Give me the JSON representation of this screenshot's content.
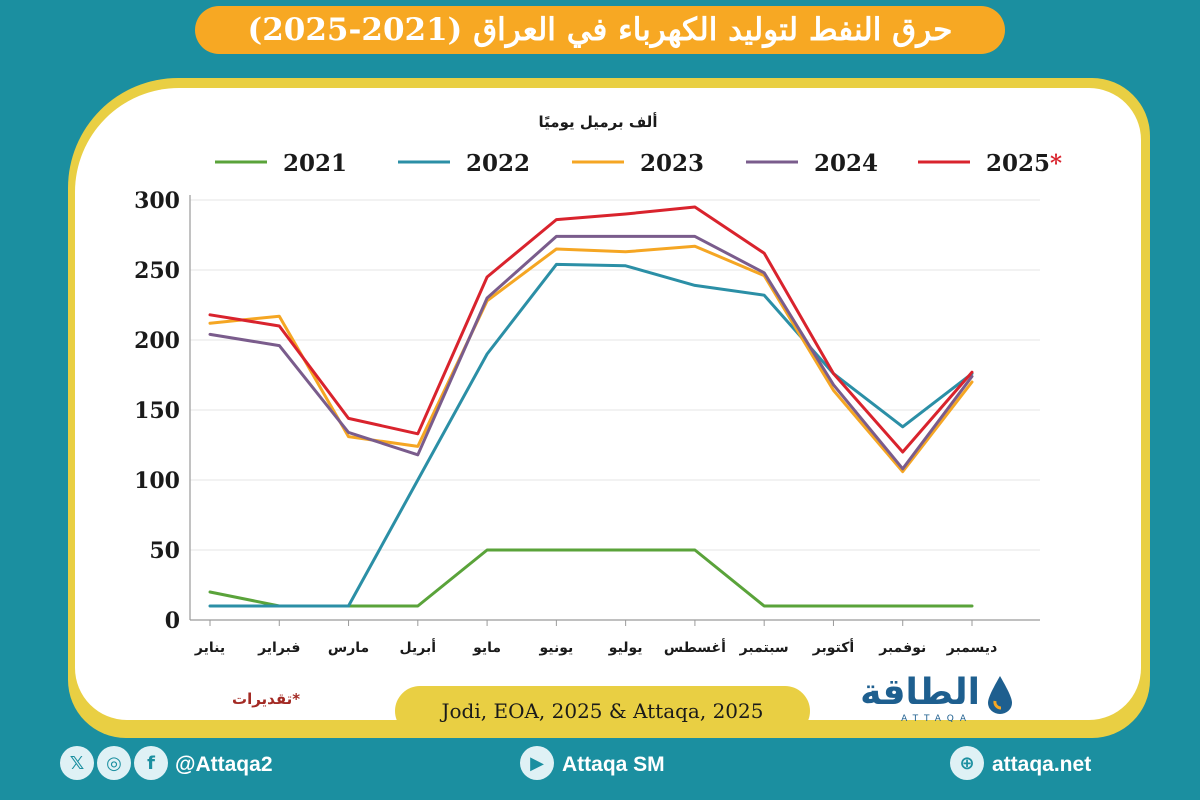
{
  "title": "حرق النفط لتوليد الكهرباء في العراق (2021-2025)",
  "source": "Jodi, EOA, 2025 & Attaqa, 2025",
  "note": "*تقديرات",
  "logo": {
    "text": "الطاقة",
    "sub": "ATTAQA"
  },
  "footer": {
    "social_handle": "@Attaqa2",
    "youtube": "Attaqa SM",
    "website": "attaqa.net",
    "icons": [
      "x-icon",
      "instagram-icon",
      "facebook-icon",
      "youtube-icon",
      "globe-icon"
    ]
  },
  "colors": {
    "background": "#1b8fa0",
    "title_pill": "#f7a823",
    "frame": "#e9cf43",
    "note": "#a32a24"
  },
  "chart_data": {
    "type": "line",
    "ylabel": "ألف برميل يوميًا",
    "ylim": [
      0,
      300
    ],
    "yticks": [
      0,
      50,
      100,
      150,
      200,
      250,
      300
    ],
    "grid": true,
    "legend_position": "top",
    "categories": [
      "يناير",
      "فبراير",
      "مارس",
      "أبريل",
      "مايو",
      "يونيو",
      "يوليو",
      "أغسطس",
      "سبتمبر",
      "أكتوبر",
      "نوفمبر",
      "ديسمبر"
    ],
    "series": [
      {
        "name": "2021",
        "color": "#5aa33a",
        "values": [
          20,
          10,
          10,
          10,
          50,
          50,
          50,
          50,
          10,
          10,
          10,
          10
        ]
      },
      {
        "name": "2022",
        "color": "#2b8fa6",
        "values": [
          10,
          10,
          10,
          100,
          190,
          254,
          253,
          239,
          232,
          176,
          138,
          176
        ]
      },
      {
        "name": "2023",
        "color": "#f5a623",
        "values": [
          212,
          217,
          131,
          124,
          228,
          265,
          263,
          267,
          246,
          164,
          106,
          170
        ]
      },
      {
        "name": "2024",
        "color": "#7a5c8c",
        "values": [
          204,
          196,
          134,
          118,
          230,
          274,
          274,
          274,
          248,
          168,
          108,
          174
        ]
      },
      {
        "name": "2025",
        "color": "#d9232d",
        "values": [
          218,
          210,
          144,
          133,
          245,
          286,
          290,
          295,
          262,
          176,
          120,
          177
        ]
      }
    ],
    "series_marker": {
      "2025": "*"
    }
  }
}
